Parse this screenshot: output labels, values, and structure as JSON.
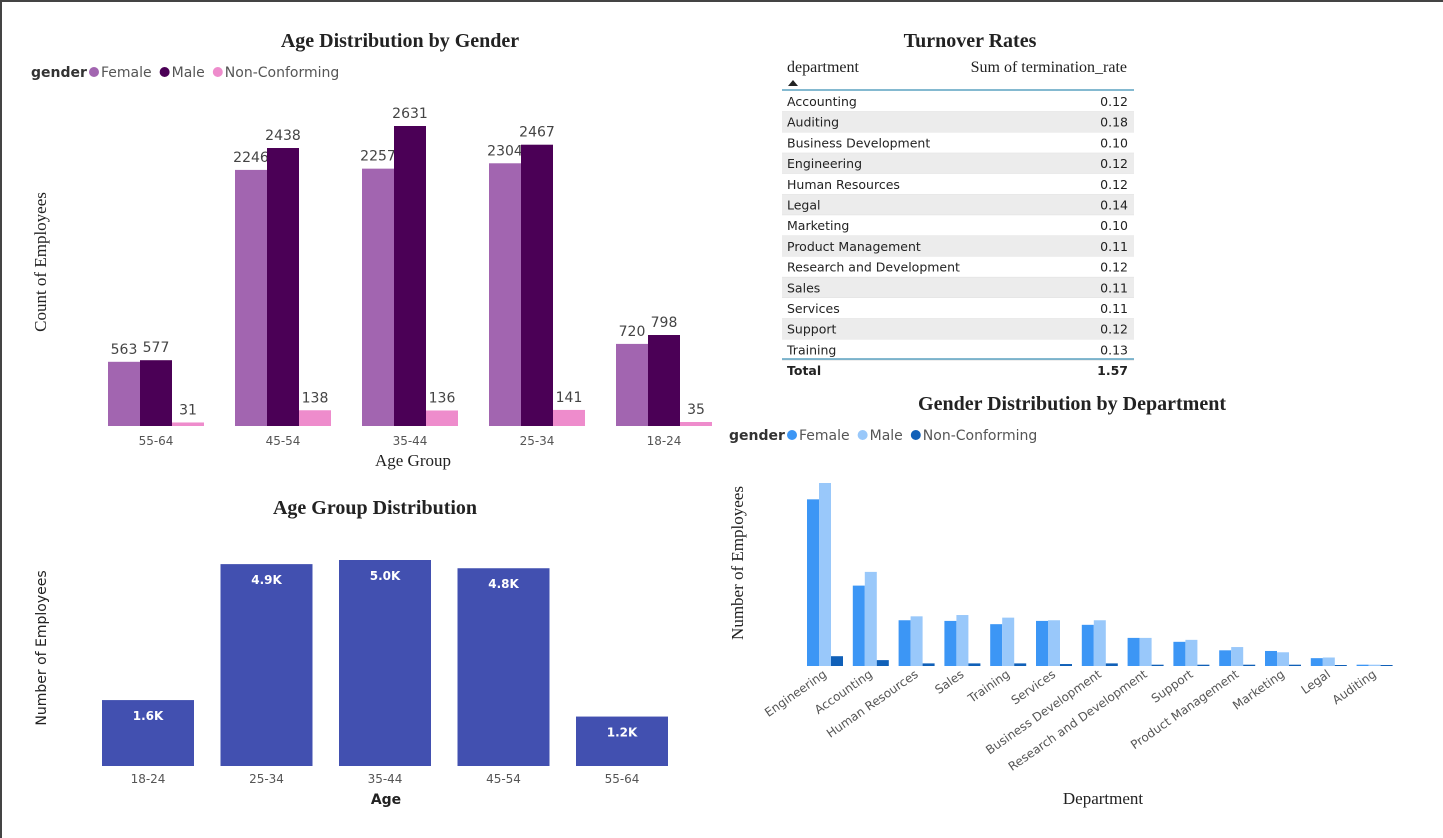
{
  "chart_data": [
    {
      "id": "age_gender",
      "type": "bar",
      "title": "Age Distribution by Gender",
      "legend_title": "gender",
      "legend_position": "top-left",
      "xlabel": "Age Group",
      "ylabel": "Count of Employees",
      "categories": [
        "55-64",
        "45-54",
        "35-44",
        "25-34",
        "18-24"
      ],
      "series": [
        {
          "name": "Female",
          "color": "#a265b0",
          "values": [
            563,
            2246,
            2257,
            2304,
            720
          ]
        },
        {
          "name": "Male",
          "color": "#4b0056",
          "values": [
            577,
            2438,
            2631,
            2467,
            798
          ]
        },
        {
          "name": "Non-Conforming",
          "color": "#ee8ccc",
          "values": [
            31,
            138,
            136,
            141,
            35
          ]
        }
      ],
      "ylim": [
        0,
        2800
      ],
      "grid": false
    },
    {
      "id": "age_group",
      "type": "bar",
      "title": "Age Group Distribution",
      "xlabel": "Age",
      "ylabel": "Number of Employees",
      "categories": [
        "18-24",
        "25-34",
        "35-44",
        "45-54",
        "55-64"
      ],
      "values": [
        1600,
        4900,
        5000,
        4800,
        1200
      ],
      "labels": [
        "1.6K",
        "4.9K",
        "5.0K",
        "4.8K",
        "1.2K"
      ],
      "color": "#4250b0",
      "ylim": [
        0,
        5100
      ],
      "grid": false
    },
    {
      "id": "turnover",
      "type": "table",
      "title": "Turnover Rates",
      "columns": [
        "department",
        "Sum of termination_rate"
      ],
      "rows": [
        [
          "Accounting",
          "0.12"
        ],
        [
          "Auditing",
          "0.18"
        ],
        [
          "Business Development",
          "0.10"
        ],
        [
          "Engineering",
          "0.12"
        ],
        [
          "Human Resources",
          "0.12"
        ],
        [
          "Legal",
          "0.14"
        ],
        [
          "Marketing",
          "0.10"
        ],
        [
          "Product Management",
          "0.11"
        ],
        [
          "Research and Development",
          "0.12"
        ],
        [
          "Sales",
          "0.11"
        ],
        [
          "Services",
          "0.11"
        ],
        [
          "Support",
          "0.12"
        ],
        [
          "Training",
          "0.13"
        ]
      ],
      "total": [
        "Total",
        "1.57"
      ]
    },
    {
      "id": "dept_gender",
      "type": "bar",
      "title": "Gender Distribution by Department",
      "legend_title": "gender",
      "legend_position": "top-left",
      "xlabel": "Department",
      "ylabel": "Number of Employees",
      "categories": [
        "Engineering",
        "Accounting",
        "Human Resources",
        "Sales",
        "Training",
        "Services",
        "Business Development",
        "Research and Development",
        "Support",
        "Product Management",
        "Marketing",
        "Legal",
        "Auditing"
      ],
      "series": [
        {
          "name": "Female",
          "color": "#3c96f5",
          "values": [
            2550,
            1230,
            700,
            690,
            640,
            690,
            630,
            430,
            370,
            240,
            230,
            120,
            20
          ]
        },
        {
          "name": "Male",
          "color": "#99c8fa",
          "values": [
            2800,
            1440,
            760,
            780,
            740,
            700,
            700,
            430,
            400,
            290,
            210,
            130,
            20
          ]
        },
        {
          "name": "Non-Conforming",
          "color": "#1060b8",
          "values": [
            150,
            90,
            40,
            40,
            40,
            30,
            40,
            20,
            20,
            20,
            20,
            10,
            5
          ]
        }
      ],
      "ylim": [
        0,
        2800
      ],
      "grid": false
    }
  ]
}
